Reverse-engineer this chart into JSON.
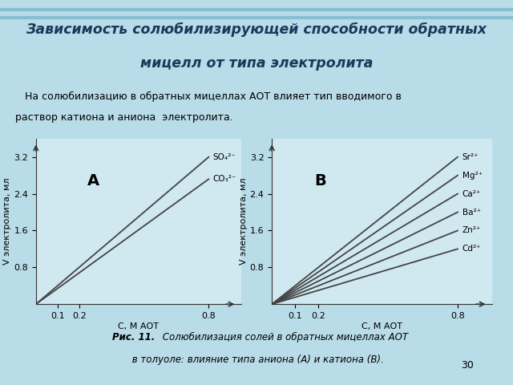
{
  "title_line1": "Зависимость солюбилизирующей способности обратных",
  "title_line2": "мицелл от типа электролита",
  "body_text1": "   На солюбилизацию в обратных мицеллах АОТ влияет тип вводимого в",
  "body_text2": "раствор катиона и аниона  электролита.",
  "caption_bold": "Рис. 11.",
  "caption_italic1": " Солюбилизация солей в обратных мицеллах АОТ",
  "caption_italic2": " в толуоле: влияние типа аниона (А) и катиона (В).",
  "page_number": "30",
  "plot_A_ylabel": "V электролита, мл",
  "plot_A_xlabel": "С, М АОТ",
  "plot_A_label": "A",
  "plot_A_xticks": [
    0.1,
    0.2,
    0.8
  ],
  "plot_A_yticks": [
    0.8,
    1.6,
    2.4,
    3.2
  ],
  "plot_A_xlim": [
    0,
    0.95
  ],
  "plot_A_ylim": [
    0,
    3.6
  ],
  "plot_A_lines": [
    {
      "label": "SO₄²⁻",
      "slope": 4.0
    },
    {
      "label": "CO₃²⁻",
      "slope": 3.4
    }
  ],
  "plot_B_ylabel": "V электролита, мл",
  "plot_B_xlabel": "С, М АОТ",
  "plot_B_label": "B",
  "plot_B_xticks": [
    0.1,
    0.2,
    0.8
  ],
  "plot_B_yticks": [
    0.8,
    1.6,
    2.4,
    3.2
  ],
  "plot_B_xlim": [
    0,
    0.95
  ],
  "plot_B_ylim": [
    0,
    3.6
  ],
  "plot_B_lines": [
    {
      "label": "Sr²⁺",
      "slope": 4.0
    },
    {
      "label": "Mg²⁺",
      "slope": 3.5
    },
    {
      "label": "Ca²⁺",
      "slope": 3.0
    },
    {
      "label": "Ba²⁺",
      "slope": 2.5
    },
    {
      "label": "Zn²⁺",
      "slope": 2.0
    },
    {
      "label": "Cd²⁺",
      "slope": 1.5
    }
  ],
  "bg_color": "#b8dce8",
  "plot_bg_color": "#d0e8f0",
  "title_color": "#1a3a5c",
  "text_color": "#000000",
  "line_color": "#444444",
  "axis_color": "#333333",
  "wave_color": "#7ab8cc"
}
